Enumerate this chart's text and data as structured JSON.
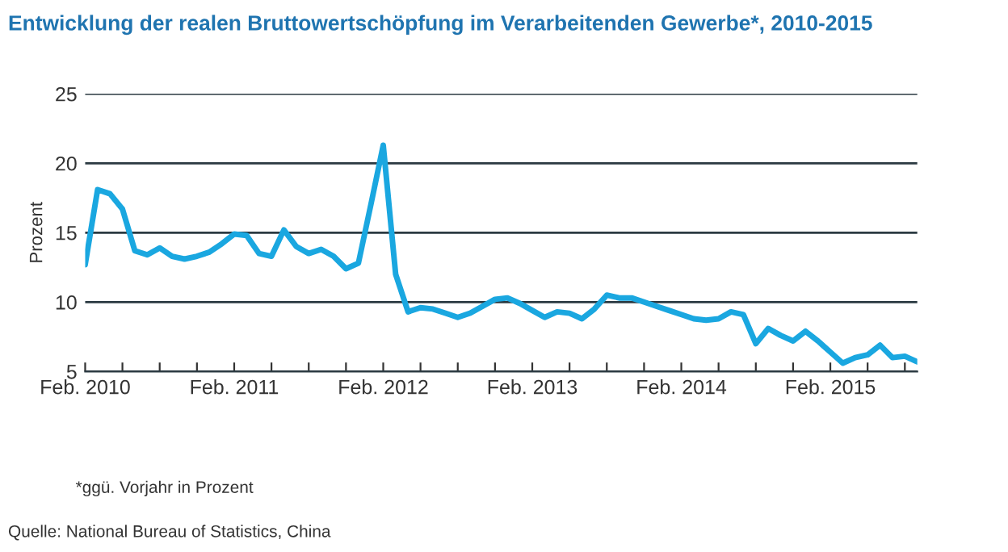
{
  "chart_data": {
    "type": "line",
    "title": "Entwicklung der realen Bruttowertschöpfung im Verarbeitenden Gewerbe*, 2010-2015",
    "ylabel": "Prozent",
    "x": [
      "2010-02",
      "2010-03",
      "2010-04",
      "2010-05",
      "2010-06",
      "2010-07",
      "2010-08",
      "2010-09",
      "2010-10",
      "2010-11",
      "2010-12",
      "2011-01",
      "2011-02",
      "2011-03",
      "2011-04",
      "2011-05",
      "2011-06",
      "2011-07",
      "2011-08",
      "2011-09",
      "2011-10",
      "2011-11",
      "2011-12",
      "2012-01",
      "2012-02",
      "2012-03",
      "2012-04",
      "2012-05",
      "2012-06",
      "2012-07",
      "2012-08",
      "2012-09",
      "2012-10",
      "2012-11",
      "2012-12",
      "2013-01",
      "2013-02",
      "2013-03",
      "2013-04",
      "2013-05",
      "2013-06",
      "2013-07",
      "2013-08",
      "2013-09",
      "2013-10",
      "2013-11",
      "2013-12",
      "2014-01",
      "2014-02",
      "2014-03",
      "2014-04",
      "2014-05",
      "2014-06",
      "2014-07",
      "2014-08",
      "2014-09",
      "2014-10",
      "2014-11",
      "2014-12",
      "2015-01",
      "2015-02",
      "2015-03",
      "2015-04",
      "2015-05",
      "2015-06",
      "2015-07",
      "2015-08",
      "2015-09"
    ],
    "series": [
      {
        "color": "#1aa7e0",
        "values": [
          12.7,
          18.1,
          17.8,
          16.7,
          13.7,
          13.4,
          13.9,
          13.3,
          13.1,
          13.3,
          13.6,
          14.2,
          14.9,
          14.8,
          13.5,
          13.3,
          15.2,
          14.0,
          13.5,
          13.8,
          13.3,
          12.4,
          12.8,
          17.0,
          21.3,
          12.0,
          9.3,
          9.6,
          9.5,
          9.2,
          8.9,
          9.2,
          9.7,
          10.2,
          10.3,
          9.9,
          9.4,
          8.9,
          9.3,
          9.2,
          8.8,
          9.5,
          10.5,
          10.3,
          10.3,
          10.0,
          9.7,
          9.4,
          9.1,
          8.8,
          8.7,
          8.8,
          9.3,
          9.1,
          7.0,
          8.1,
          7.6,
          7.2,
          7.9,
          7.2,
          6.4,
          5.6,
          6.0,
          6.2,
          6.9,
          6.0,
          6.1,
          5.7
        ]
      }
    ],
    "xlim": [
      "2010-02",
      "2015-09"
    ],
    "xticks": [
      {
        "value": "2010-02",
        "label": "Feb. 2010"
      },
      {
        "value": "2010-05",
        "label": null
      },
      {
        "value": "2010-08",
        "label": null
      },
      {
        "value": "2010-11",
        "label": null
      },
      {
        "value": "2011-02",
        "label": "Feb. 2011"
      },
      {
        "value": "2011-05",
        "label": null
      },
      {
        "value": "2011-08",
        "label": null
      },
      {
        "value": "2011-11",
        "label": null
      },
      {
        "value": "2012-02",
        "label": "Feb. 2012"
      },
      {
        "value": "2012-05",
        "label": null
      },
      {
        "value": "2012-08",
        "label": null
      },
      {
        "value": "2012-11",
        "label": null
      },
      {
        "value": "2013-02",
        "label": "Feb. 2013"
      },
      {
        "value": "2013-05",
        "label": null
      },
      {
        "value": "2013-08",
        "label": null
      },
      {
        "value": "2013-11",
        "label": null
      },
      {
        "value": "2014-02",
        "label": "Feb. 2014"
      },
      {
        "value": "2014-05",
        "label": null
      },
      {
        "value": "2014-08",
        "label": null
      },
      {
        "value": "2014-11",
        "label": null
      },
      {
        "value": "2015-02",
        "label": "Feb. 2015"
      },
      {
        "value": "2015-05",
        "label": null
      },
      {
        "value": "2015-08",
        "label": null
      }
    ],
    "ylim": [
      5,
      25
    ],
    "yticks": [
      5,
      10,
      15,
      20,
      25
    ],
    "grid": "y",
    "legend": false,
    "marker": "none",
    "line_style": "solid",
    "annotations": [
      "*ggü. Vorjahr in Prozent",
      "Quelle: National Bureau of Statistics, China"
    ]
  }
}
